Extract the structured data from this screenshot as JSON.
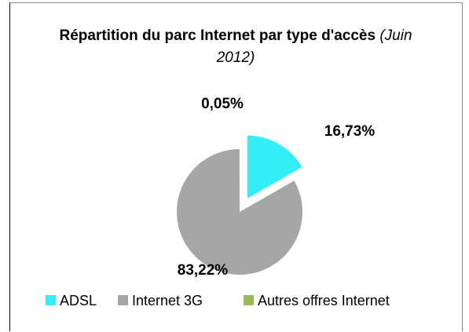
{
  "chart_data": {
    "type": "pie",
    "title": "Répartition du parc Internet par type d'accès",
    "subtitle": "(Juin 2012)",
    "categories": [
      "ADSL",
      "Internet 3G",
      "Autres offres Internet"
    ],
    "values": [
      16.73,
      83.22,
      0.05
    ],
    "value_labels": [
      "16,73%",
      "83,22%",
      "0,05%"
    ],
    "colors": [
      "#33eef5",
      "#a6a6a6",
      "#9bbb59"
    ],
    "legend": "bottom"
  }
}
